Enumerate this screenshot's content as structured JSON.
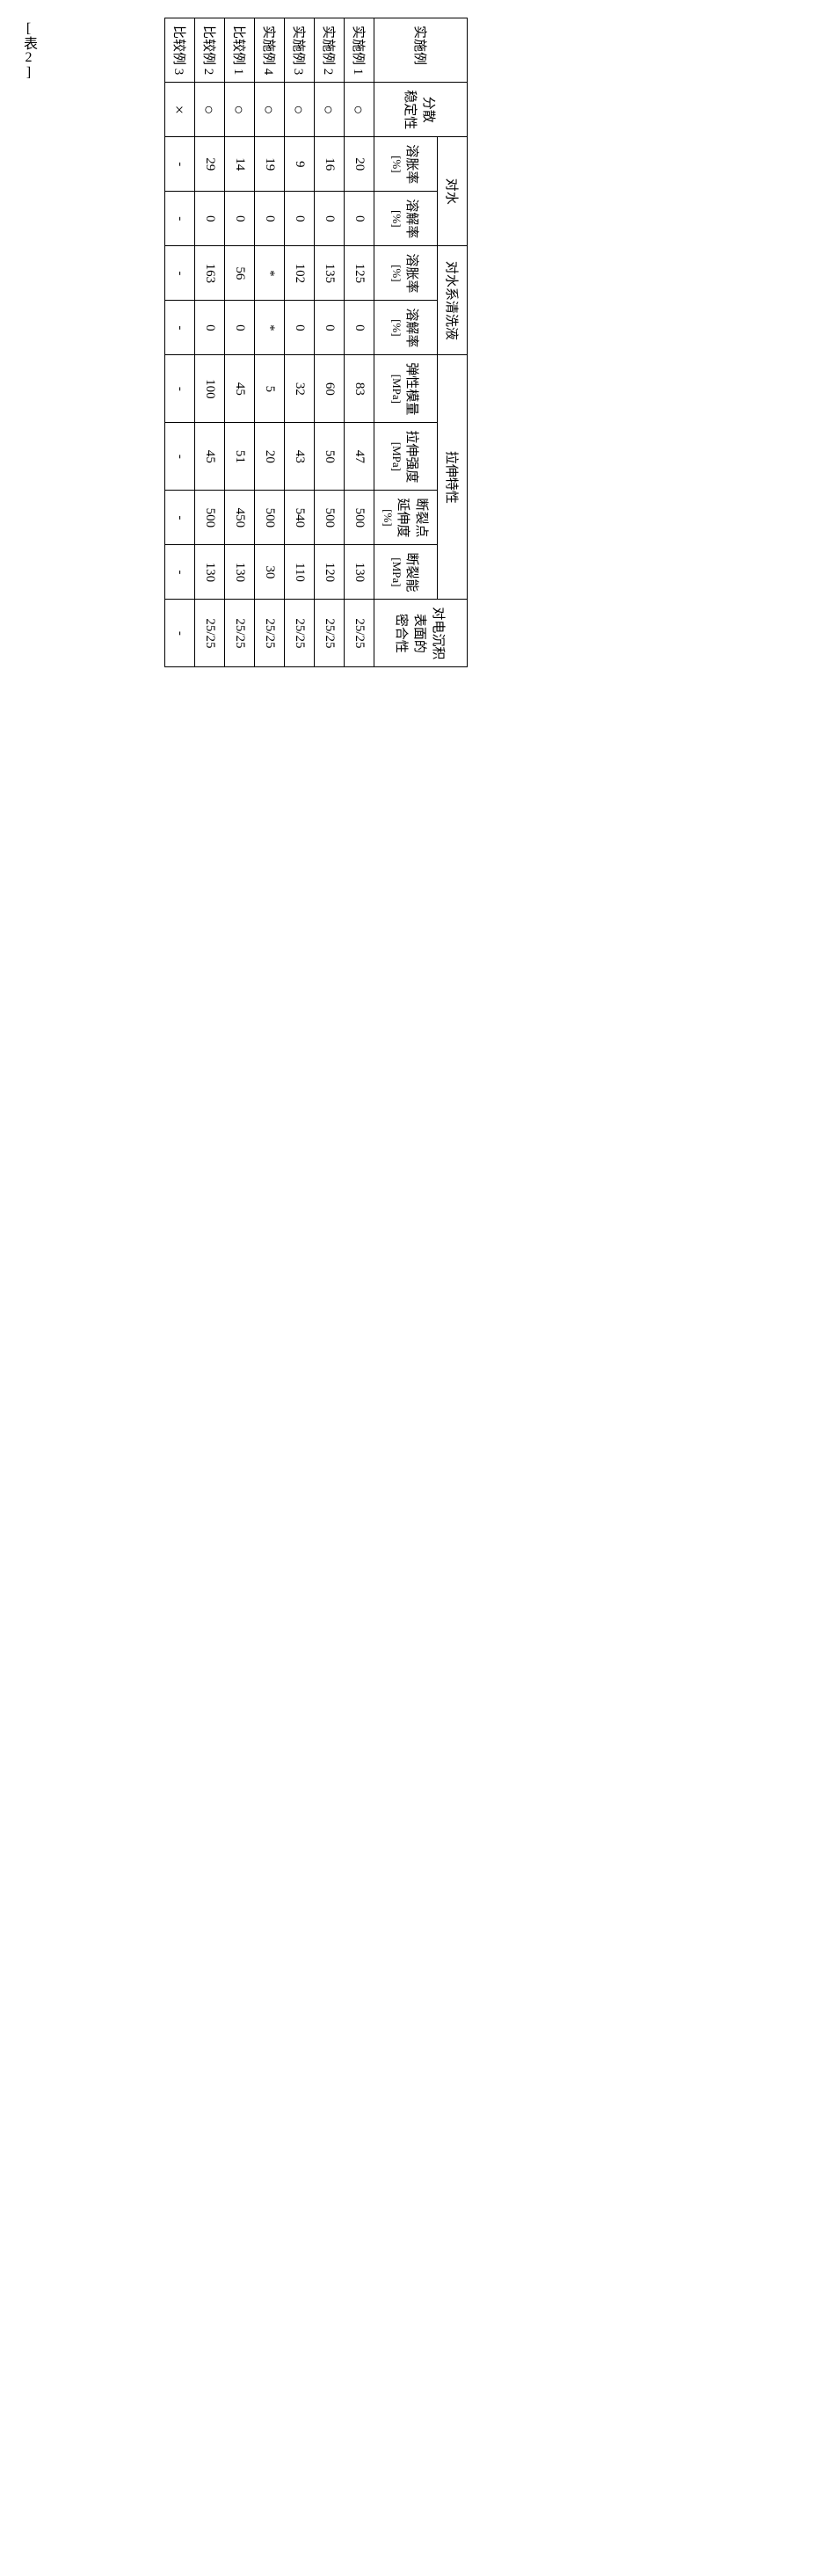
{
  "label": "[表2]",
  "headers": {
    "example": "实施例",
    "dispersion_stability": "分散\n稳定性",
    "water": "对水",
    "aqueous_cleaning": "对水系清洗液",
    "tensile": "拉伸特性",
    "adhesion": "对电沉积\n表面的\n密合性",
    "swelling": "溶胀率\n[%]",
    "dissolution": "溶解率\n[%]",
    "elastic_modulus": "弹性模量\n[MPa]",
    "tensile_strength": "拉伸强度\n[MPa]",
    "elongation": "断裂点\n延伸度\n[%]",
    "fracture_energy": "断裂能\n[MPa]"
  },
  "rows": [
    {
      "name": "实施例 1",
      "stab": "○",
      "w_sw": "20",
      "w_ds": "0",
      "a_sw": "125",
      "a_ds": "0",
      "em": "83",
      "ts": "47",
      "el": "500",
      "fe": "130",
      "ad": "25/25"
    },
    {
      "name": "实施例 2",
      "stab": "○",
      "w_sw": "16",
      "w_ds": "0",
      "a_sw": "135",
      "a_ds": "0",
      "em": "60",
      "ts": "50",
      "el": "500",
      "fe": "120",
      "ad": "25/25"
    },
    {
      "name": "实施例 3",
      "stab": "○",
      "w_sw": "9",
      "w_ds": "0",
      "a_sw": "102",
      "a_ds": "0",
      "em": "32",
      "ts": "43",
      "el": "540",
      "fe": "110",
      "ad": "25/25"
    },
    {
      "name": "实施例 4",
      "stab": "○",
      "w_sw": "19",
      "w_ds": "0",
      "a_sw": "*",
      "a_ds": "*",
      "em": "5",
      "ts": "20",
      "el": "500",
      "fe": "30",
      "ad": "25/25"
    },
    {
      "name": "比较例 1",
      "stab": "○",
      "w_sw": "14",
      "w_ds": "0",
      "a_sw": "56",
      "a_ds": "0",
      "em": "45",
      "ts": "51",
      "el": "450",
      "fe": "130",
      "ad": "25/25"
    },
    {
      "name": "比较例 2",
      "stab": "○",
      "w_sw": "29",
      "w_ds": "0",
      "a_sw": "163",
      "a_ds": "0",
      "em": "100",
      "ts": "45",
      "el": "500",
      "fe": "130",
      "ad": "25/25"
    },
    {
      "name": "比较例 3",
      "stab": "×",
      "w_sw": "-",
      "w_ds": "-",
      "a_sw": "-",
      "a_ds": "-",
      "em": "-",
      "ts": "-",
      "el": "-",
      "fe": "-",
      "ad": "-"
    }
  ],
  "styling": {
    "border_color": "#000000",
    "background": "#ffffff",
    "font_size_body": 15,
    "font_size_unit": 13,
    "circle_char": "○",
    "cross_char": "×"
  }
}
